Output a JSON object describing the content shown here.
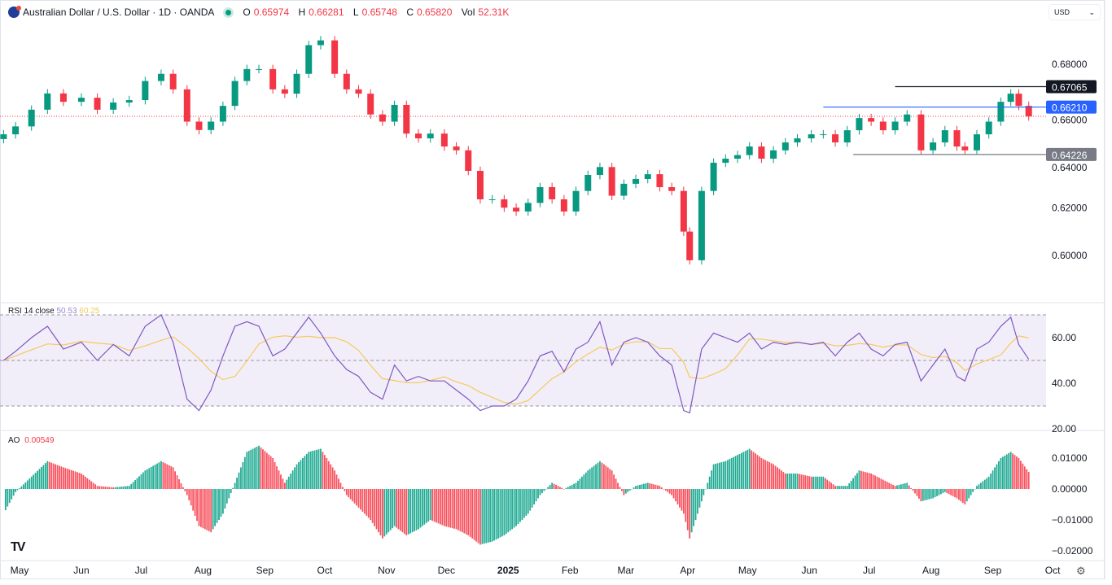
{
  "header": {
    "symbol_title": "Australian Dollar / U.S. Dollar · 1D · OANDA",
    "market_status": "open",
    "open_label": "O",
    "open": "0.65974",
    "high_label": "H",
    "high": "0.66281",
    "low_label": "L",
    "low": "0.65748",
    "close_label": "C",
    "close": "0.65820",
    "vol_label": "Vol",
    "vol": "52.31K"
  },
  "currency_selector": "USD",
  "colors": {
    "up": "#089981",
    "down": "#f23645",
    "rsi": "#7e57c2",
    "rsi_ma": "#f5c95c",
    "ao_up": "#22ab94",
    "ao_down": "#f7525f",
    "level_blue": "#2962ff"
  },
  "chart_data": [
    {
      "type": "candlestick",
      "title": "Australian Dollar / U.S. Dollar · 1D · OANDA",
      "ylim": [
        0.59,
        0.695
      ],
      "y_ticks": [
        "0.68000",
        "0.66000",
        "0.64000",
        "0.62000",
        "0.60000"
      ],
      "y_tick_values": [
        0.68,
        0.66,
        0.64,
        0.62,
        0.6
      ],
      "x": [
        "2024-04-23",
        "2024-04-29",
        "2024-05-07",
        "2024-05-15",
        "2024-05-23",
        "2024-06-01",
        "2024-06-09",
        "2024-06-17",
        "2024-06-25",
        "2024-07-03",
        "2024-07-11",
        "2024-07-17",
        "2024-07-24",
        "2024-07-30",
        "2024-08-05",
        "2024-08-11",
        "2024-08-17",
        "2024-08-23",
        "2024-08-29",
        "2024-09-05",
        "2024-09-11",
        "2024-09-17",
        "2024-09-23",
        "2024-09-29",
        "2024-10-06",
        "2024-10-12",
        "2024-10-18",
        "2024-10-24",
        "2024-10-30",
        "2024-11-05",
        "2024-11-11",
        "2024-11-17",
        "2024-11-23",
        "2024-11-30",
        "2024-12-06",
        "2024-12-12",
        "2024-12-18",
        "2024-12-24",
        "2024-12-30",
        "2025-01-05",
        "2025-01-11",
        "2025-01-17",
        "2025-01-23",
        "2025-01-29",
        "2025-02-04",
        "2025-02-10",
        "2025-02-16",
        "2025-02-22",
        "2025-02-28",
        "2025-03-06",
        "2025-03-12",
        "2025-03-18",
        "2025-03-24",
        "2025-03-30",
        "2025-04-02",
        "2025-04-08",
        "2025-04-14",
        "2025-04-20",
        "2025-04-26",
        "2025-05-02",
        "2025-05-08",
        "2025-05-14",
        "2025-05-20",
        "2025-05-26",
        "2025-06-02",
        "2025-06-08",
        "2025-06-14",
        "2025-06-20",
        "2025-06-26",
        "2025-07-02",
        "2025-07-08",
        "2025-07-14",
        "2025-07-20",
        "2025-07-27",
        "2025-08-02",
        "2025-08-08",
        "2025-08-14",
        "2025-08-18",
        "2025-08-24",
        "2025-08-30",
        "2025-09-05",
        "2025-09-10",
        "2025-09-14",
        "2025-09-19"
      ],
      "close": [
        0.6507,
        0.654,
        0.661,
        0.6678,
        0.6643,
        0.666,
        0.661,
        0.664,
        0.665,
        0.673,
        0.676,
        0.6695,
        0.656,
        0.6525,
        0.656,
        0.6626,
        0.673,
        0.678,
        0.678,
        0.6695,
        0.6677,
        0.676,
        0.688,
        0.69,
        0.676,
        0.6695,
        0.6677,
        0.659,
        0.656,
        0.663,
        0.651,
        0.649,
        0.651,
        0.6456,
        0.644,
        0.6354,
        0.6235,
        0.6235,
        0.62,
        0.6184,
        0.622,
        0.6286,
        0.6235,
        0.6184,
        0.627,
        0.6337,
        0.637,
        0.625,
        0.63,
        0.632,
        0.634,
        0.6286,
        0.627,
        0.61,
        0.598,
        0.627,
        0.6388,
        0.6405,
        0.642,
        0.6456,
        0.6405,
        0.644,
        0.6473,
        0.649,
        0.6507,
        0.6507,
        0.6473,
        0.6524,
        0.6575,
        0.656,
        0.6524,
        0.656,
        0.659,
        0.644,
        0.6473,
        0.6524,
        0.6456,
        0.644,
        0.6507,
        0.656,
        0.6643,
        0.6677,
        0.6626,
        0.6582
      ],
      "levels": [
        {
          "label": "0.67065",
          "value": 0.67065,
          "color": "#131722",
          "from": "2025-07-14"
        },
        {
          "label": "0.66210",
          "value": 0.6621,
          "color": "#2962ff",
          "from": "2025-06-08"
        },
        {
          "label": "0.64226",
          "value": 0.64226,
          "color": "#787b86",
          "from": "2025-06-23"
        }
      ],
      "last_price": 0.6582
    },
    {
      "type": "line",
      "title": "RSI 14 close",
      "rsi_value": "50.53",
      "ma_value": "60.25",
      "ylim": [
        18,
        75
      ],
      "bands": [
        70,
        50,
        30
      ],
      "y_ticks": [
        "60.00",
        "40.00",
        "20.00"
      ],
      "y_tick_values": [
        60,
        40,
        20
      ],
      "rsi": [
        50,
        54,
        60,
        65,
        55,
        58,
        50,
        57,
        52,
        65,
        70,
        58,
        33,
        28,
        37,
        52,
        65,
        67,
        65,
        52,
        55,
        62,
        69,
        62,
        52,
        46,
        43,
        36,
        33,
        48,
        41,
        43,
        41,
        41,
        37,
        33,
        28,
        30,
        30,
        33,
        41,
        52,
        54,
        45,
        55,
        58,
        67,
        48,
        58,
        60,
        58,
        52,
        48,
        28,
        27,
        55,
        62,
        60,
        58,
        62,
        55,
        58,
        57,
        58,
        57,
        58,
        52,
        58,
        62,
        55,
        52,
        57,
        58,
        41,
        48,
        55,
        43,
        41,
        55,
        58,
        65,
        69,
        57,
        50.5
      ]
    },
    {
      "type": "bar",
      "title": "AO",
      "value": "0.00549",
      "ylim": [
        -0.0225,
        0.016
      ],
      "y_ticks": [
        "0.01000",
        "0.00000",
        "−0.01000",
        "−0.02000"
      ],
      "y_tick_values": [
        0.01,
        0,
        -0.01,
        -0.02
      ],
      "ao": [
        -0.008,
        -0.001,
        0.004,
        0.009,
        0.007,
        0.005,
        0.001,
        0.0005,
        0.001,
        0.006,
        0.009,
        0.007,
        -0.002,
        -0.012,
        -0.014,
        -0.008,
        0.002,
        0.012,
        0.014,
        0.01,
        0.002,
        0.008,
        0.012,
        0.013,
        0.006,
        -0.002,
        -0.006,
        -0.01,
        -0.016,
        -0.012,
        -0.015,
        -0.013,
        -0.01,
        -0.012,
        -0.013,
        -0.015,
        -0.018,
        -0.017,
        -0.015,
        -0.012,
        -0.008,
        -0.002,
        0.002,
        0,
        0.002,
        0.006,
        0.009,
        0.006,
        -0.002,
        0.001,
        0.002,
        0.001,
        -0.002,
        -0.008,
        -0.016,
        -0.004,
        0.008,
        0.009,
        0.011,
        0.013,
        0.01,
        0.008,
        0.005,
        0.005,
        0.004,
        0.004,
        0.001,
        0.001,
        0.006,
        0.005,
        0.003,
        0.001,
        0.002,
        -0.004,
        -0.003,
        -0.001,
        -0.003,
        -0.005,
        0.001,
        0.004,
        0.01,
        0.012,
        0.01,
        0.0055
      ]
    }
  ],
  "time_axis": [
    {
      "label": "May",
      "date": "2024-05-01",
      "bold": false
    },
    {
      "label": "Jun",
      "date": "2024-06-01",
      "bold": false
    },
    {
      "label": "Jul",
      "date": "2024-07-01",
      "bold": false
    },
    {
      "label": "Aug",
      "date": "2024-08-01",
      "bold": false
    },
    {
      "label": "Sep",
      "date": "2024-09-01",
      "bold": false
    },
    {
      "label": "Oct",
      "date": "2024-10-01",
      "bold": false
    },
    {
      "label": "Nov",
      "date": "2024-11-01",
      "bold": false
    },
    {
      "label": "Dec",
      "date": "2024-12-01",
      "bold": false
    },
    {
      "label": "2025",
      "date": "2025-01-01",
      "bold": true
    },
    {
      "label": "Feb",
      "date": "2025-02-01",
      "bold": false
    },
    {
      "label": "Mar",
      "date": "2025-03-01",
      "bold": false
    },
    {
      "label": "Apr",
      "date": "2025-04-01",
      "bold": false
    },
    {
      "label": "May",
      "date": "2025-05-01",
      "bold": false
    },
    {
      "label": "Jun",
      "date": "2025-06-01",
      "bold": false
    },
    {
      "label": "Jul",
      "date": "2025-07-01",
      "bold": false
    },
    {
      "label": "Aug",
      "date": "2025-08-01",
      "bold": false
    },
    {
      "label": "Sep",
      "date": "2025-09-01",
      "bold": false
    },
    {
      "label": "Oct",
      "date": "2025-10-01",
      "bold": false
    }
  ],
  "settings_icon": "gear-icon",
  "logo": "TV"
}
